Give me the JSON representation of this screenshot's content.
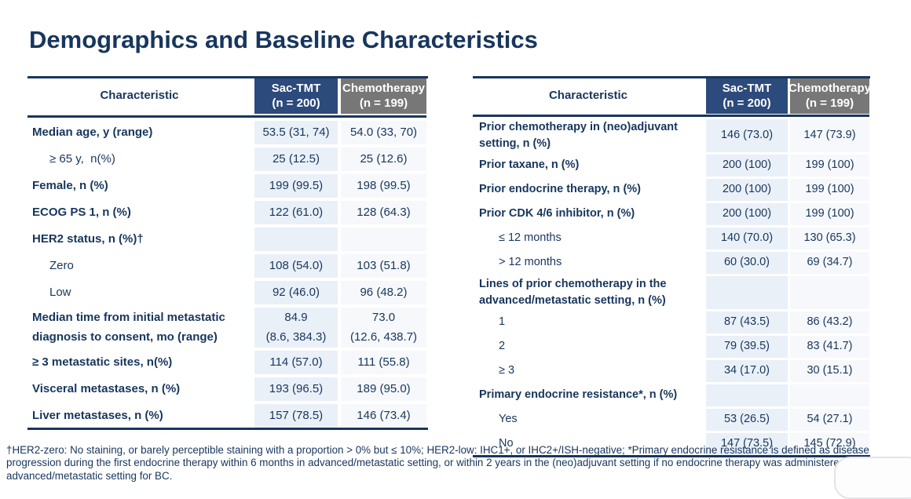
{
  "title": "Demographics and Baseline Characteristics",
  "colors": {
    "title_navy": "#17365D",
    "header_blue": "#2C4A7C",
    "header_gray": "#777777",
    "cell_blue": "#EAF0F8",
    "cell_light": "#F6F8FB"
  },
  "left_table": {
    "col_characteristic": "Characteristic",
    "col_arm1": "Sac-TMT\n(n = 200)",
    "col_arm2": "Chemotherapy\n(n = 199)",
    "rows": [
      {
        "label": "Median age, y (range)",
        "indent": false,
        "sac": "53.5 (31, 74)",
        "chemo": "54.0 (33, 70)"
      },
      {
        "label": "≥ 65 y,  n(%)",
        "indent": true,
        "sac": "25 (12.5)",
        "chemo": "25 (12.6)"
      },
      {
        "label": "Female, n (%)",
        "indent": false,
        "sac": "199 (99.5)",
        "chemo": "198 (99.5)"
      },
      {
        "label": "ECOG PS 1, n (%)",
        "indent": false,
        "sac": "122 (61.0)",
        "chemo": "128 (64.3)"
      },
      {
        "label": "HER2 status, n (%)†",
        "indent": false,
        "sac": "",
        "chemo": ""
      },
      {
        "label": "Zero",
        "indent": true,
        "sac": "108 (54.0)",
        "chemo": "103 (51.8)"
      },
      {
        "label": "Low",
        "indent": true,
        "sac": "92 (46.0)",
        "chemo": "96 (48.2)"
      },
      {
        "label": "Median time from initial metastatic diagnosis to consent, mo (range)",
        "indent": false,
        "sac": "84.9\n(8.6, 384.3)",
        "chemo": "73.0\n(12.6, 438.7)"
      },
      {
        "label": "≥ 3 metastatic sites, n(%)",
        "indent": false,
        "sac": "114 (57.0)",
        "chemo": "111 (55.8)"
      },
      {
        "label": "Visceral metastases, n (%)",
        "indent": false,
        "sac": "193 (96.5)",
        "chemo": "189 (95.0)"
      },
      {
        "label": "Liver metastases, n (%)",
        "indent": false,
        "sac": "157 (78.5)",
        "chemo": "146 (73.4)"
      }
    ]
  },
  "right_table": {
    "col_characteristic": "Characteristic",
    "col_arm1": "Sac-TMT\n(n = 200)",
    "col_arm2": "Chemotherapy\n(n = 199)",
    "rows": [
      {
        "label": "Prior chemotherapy in (neo)adjuvant setting, n (%)",
        "indent": false,
        "sac": "146 (73.0)",
        "chemo": "147 (73.9)"
      },
      {
        "label": "Prior taxane, n (%)",
        "indent": false,
        "sac": "200 (100)",
        "chemo": "199 (100)"
      },
      {
        "label": "Prior endocrine therapy, n (%)",
        "indent": false,
        "sac": "200 (100)",
        "chemo": "199 (100)"
      },
      {
        "label": "Prior CDK 4/6 inhibitor, n (%)",
        "indent": false,
        "sac": "200 (100)",
        "chemo": "199 (100)"
      },
      {
        "label": "≤ 12 months",
        "indent": true,
        "sac": "140 (70.0)",
        "chemo": "130 (65.3)"
      },
      {
        "label": "> 12 months",
        "indent": true,
        "sac": "60 (30.0)",
        "chemo": "69 (34.7)"
      },
      {
        "label": "Lines of prior chemotherapy in the advanced/metastatic setting, n (%)",
        "indent": false,
        "sac": "",
        "chemo": ""
      },
      {
        "label": "1",
        "indent": true,
        "sac": "87 (43.5)",
        "chemo": "86 (43.2)"
      },
      {
        "label": "2",
        "indent": true,
        "sac": "79 (39.5)",
        "chemo": "83 (41.7)"
      },
      {
        "label": "≥ 3",
        "indent": true,
        "sac": "34 (17.0)",
        "chemo": "30 (15.1)"
      },
      {
        "label": "Primary endocrine resistance*, n (%)",
        "indent": false,
        "sac": "",
        "chemo": ""
      },
      {
        "label": "Yes",
        "indent": true,
        "sac": "53 (26.5)",
        "chemo": "54 (27.1)"
      },
      {
        "label": "No",
        "indent": true,
        "sac": "147 (73.5)",
        "chemo": "145 (72.9)"
      }
    ]
  },
  "footnote": "†HER2-zero: No staining, or barely perceptible staining with a proportion > 0% but ≤ 10%; HER2-low: IHC1+, or IHC2+/ISH-negative; *Primary endocrine resistance is defined as disease progression during the first endocrine therapy within 6 months in advanced/metastatic setting, or within 2 years in the (neo)adjuvant setting if no endocrine therapy was administered in advanced/metastatic setting for BC."
}
